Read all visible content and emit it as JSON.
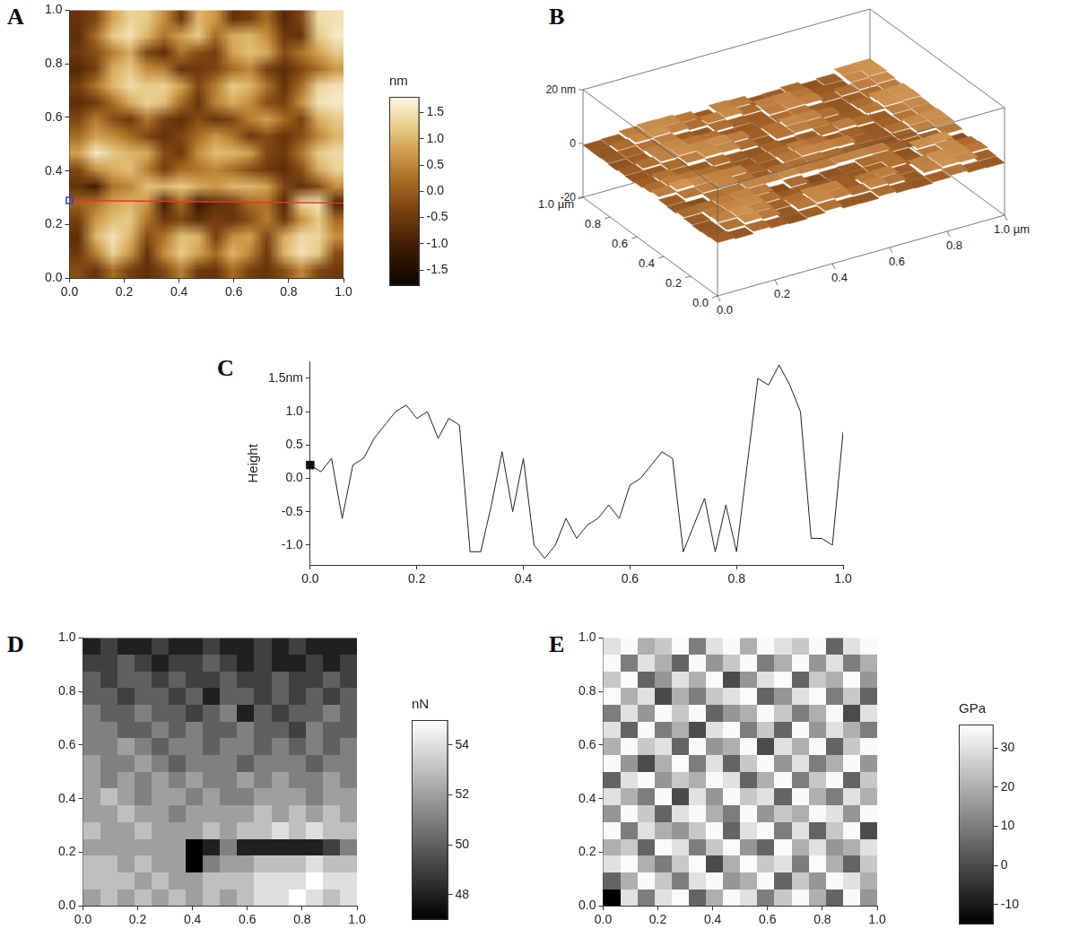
{
  "chart_data": [
    {
      "panel_label": "A",
      "type": "heatmap",
      "color": "gold",
      "xlim": [
        0,
        1
      ],
      "ylim": [
        0,
        1
      ],
      "xticks": [
        {
          "value": 0,
          "label": "0.0"
        },
        0.2,
        0.4,
        0.6,
        0.8,
        {
          "value": 1,
          "label": "1.0"
        }
      ],
      "yticks": [
        {
          "value": 0,
          "label": "0.0"
        },
        0.2,
        0.4,
        0.6,
        0.8,
        {
          "value": 1,
          "label": "1.0"
        }
      ],
      "cells": [
        [
          -0.6,
          -0.3,
          0.8,
          1.3,
          1.2,
          0.6,
          -0.5,
          1.0,
          0.7,
          -0.6,
          -0.4,
          0.2,
          -0.8,
          -0.3,
          1.4,
          1.5
        ],
        [
          -0.7,
          0.2,
          1.2,
          1.5,
          1.0,
          0.3,
          0.8,
          1.2,
          0.2,
          0.9,
          1.0,
          0.6,
          -0.5,
          -0.6,
          1.2,
          1.6
        ],
        [
          -0.5,
          -0.2,
          0.4,
          0.9,
          -0.3,
          -0.7,
          0.3,
          -0.2,
          -0.4,
          0.8,
          1.1,
          0.9,
          -0.2,
          0.3,
          0.8,
          1.2
        ],
        [
          -0.8,
          -0.4,
          0.9,
          1.2,
          0.6,
          0.4,
          -0.6,
          -0.5,
          -0.3,
          0.2,
          0.5,
          -0.4,
          -0.7,
          -0.3,
          0.2,
          0.7
        ],
        [
          -0.4,
          0.3,
          1.0,
          1.4,
          1.2,
          1.3,
          0.8,
          -0.3,
          0.4,
          1.2,
          1.0,
          0.3,
          -0.6,
          0.2,
          1.3,
          1.5
        ],
        [
          -0.7,
          -0.5,
          0.2,
          0.9,
          1.3,
          1.1,
          0.2,
          -0.6,
          0.5,
          0.9,
          0.6,
          -0.2,
          -0.4,
          0.6,
          1.5,
          1.6
        ],
        [
          -0.3,
          0.4,
          -0.2,
          -0.5,
          0.3,
          -0.4,
          -0.7,
          -0.2,
          -0.6,
          -0.3,
          0.4,
          0.8,
          0.2,
          -0.4,
          0.9,
          1.2
        ],
        [
          0.2,
          0.8,
          0.6,
          0.2,
          -0.3,
          -0.6,
          -0.3,
          0.2,
          0.7,
          0.3,
          -0.5,
          -0.2,
          -0.6,
          -0.2,
          0.5,
          1.0
        ],
        [
          0.8,
          1.6,
          1.2,
          1.0,
          0.9,
          -0.2,
          -0.5,
          0.6,
          1.1,
          1.0,
          0.8,
          -0.3,
          -0.5,
          0.3,
          1.2,
          1.4
        ],
        [
          -0.3,
          0.6,
          0.9,
          1.1,
          0.4,
          -0.4,
          0.2,
          0.3,
          0.5,
          0.2,
          -0.2,
          -0.5,
          -0.7,
          -0.2,
          0.9,
          1.3
        ],
        [
          -0.6,
          -1.0,
          0.3,
          0.5,
          1.1,
          1.0,
          1.2,
          0.9,
          0.7,
          1.0,
          1.0,
          0.8,
          -0.3,
          -0.6,
          -0.2,
          0.6
        ],
        [
          0.1,
          0.3,
          0.8,
          1.0,
          0.7,
          -1.0,
          0.2,
          -1.1,
          -0.7,
          -0.5,
          0.2,
          0.3,
          -0.8,
          1.3,
          1.5,
          -0.9
        ],
        [
          -0.4,
          0.7,
          1.1,
          1.2,
          0.3,
          -0.5,
          -0.3,
          -0.7,
          -0.4,
          -0.6,
          -0.2,
          0.4,
          -0.5,
          0.6,
          1.2,
          0.2
        ],
        [
          -0.7,
          1.0,
          1.5,
          1.0,
          -0.2,
          0.3,
          1.1,
          1.0,
          -0.4,
          0.6,
          0.8,
          -0.3,
          0.9,
          1.4,
          1.3,
          0.6
        ],
        [
          -0.5,
          0.4,
          1.3,
          0.7,
          -0.6,
          0.6,
          1.2,
          0.8,
          0.2,
          1.0,
          0.5,
          -0.5,
          1.0,
          1.5,
          1.2,
          -0.2
        ],
        [
          -0.2,
          -0.6,
          0.2,
          -0.4,
          -0.7,
          -0.3,
          0.4,
          -0.5,
          -0.6,
          0.2,
          -0.4,
          -0.6,
          -0.2,
          0.5,
          -0.3,
          -0.5
        ]
      ],
      "colorbar": {
        "title": "nm",
        "range": [
          -1.8,
          1.8
        ],
        "ticks": [
          1.5,
          {
            "value": 1,
            "label": "1.0"
          },
          0.5,
          {
            "value": 0,
            "label": "0.0"
          },
          -0.5,
          {
            "value": -1,
            "label": "-1.0"
          },
          -1.5
        ]
      },
      "profile": {
        "x": [
          0,
          1
        ],
        "y": [
          0.29,
          0.28
        ],
        "color": "#e8372b"
      }
    },
    {
      "panel_label": "B",
      "type": "surface3d",
      "xlim": [
        0,
        1
      ],
      "ylim": [
        0,
        1
      ],
      "zlim": [
        -20,
        20
      ],
      "xticks": [
        {
          "value": 0,
          "label": "0.0"
        },
        0.2,
        0.4,
        0.6,
        0.8,
        {
          "value": 1,
          "label": "1.0 µm"
        }
      ],
      "yticks": [
        {
          "value": 0,
          "label": "0.0"
        },
        0.2,
        0.4,
        0.6,
        0.8,
        {
          "value": 1,
          "label": "1.0 µm"
        }
      ],
      "zticks": [
        -20,
        0,
        {
          "value": 20,
          "label": "20 nm"
        }
      ]
    },
    {
      "panel_label": "C",
      "type": "line",
      "y_label": "Height",
      "color": "#222222",
      "x": [
        0,
        0.02,
        0.04,
        0.06,
        0.08,
        0.1,
        0.12,
        0.14,
        0.16,
        0.18,
        0.2,
        0.22,
        0.24,
        0.26,
        0.28,
        0.3,
        0.32,
        0.34,
        0.36,
        0.38,
        0.4,
        0.42,
        0.44,
        0.46,
        0.48,
        0.5,
        0.52,
        0.54,
        0.56,
        0.58,
        0.6,
        0.62,
        0.64,
        0.66,
        0.68,
        0.7,
        0.72,
        0.74,
        0.76,
        0.78,
        0.8,
        0.82,
        0.84,
        0.86,
        0.88,
        0.9,
        0.92,
        0.94,
        0.96,
        0.98,
        1
      ],
      "values": [
        0.2,
        0.1,
        0.3,
        -0.6,
        0.2,
        0.3,
        0.6,
        0.8,
        1.0,
        1.1,
        0.9,
        1.0,
        0.6,
        0.9,
        0.8,
        -1.1,
        -1.1,
        -0.4,
        0.4,
        -0.5,
        0.3,
        -1.0,
        -1.2,
        -1.0,
        -0.6,
        -0.9,
        -0.7,
        -0.6,
        -0.4,
        -0.6,
        -0.1,
        0.0,
        0.2,
        0.4,
        0.3,
        -1.1,
        -0.7,
        -0.3,
        -1.1,
        -0.4,
        -1.1,
        0.2,
        1.5,
        1.4,
        1.7,
        1.4,
        1.0,
        -0.9,
        -0.9,
        -1.0,
        0.7
      ],
      "xlim": [
        0,
        1
      ],
      "ylim": [
        -1.3,
        1.75
      ],
      "xticks": [
        {
          "value": 0,
          "label": "0.0"
        },
        0.2,
        0.4,
        0.6,
        0.8,
        {
          "value": 1,
          "label": "1.0"
        }
      ],
      "yticks": [
        {
          "value": 1.5,
          "label": "1.5nm"
        },
        {
          "value": 1,
          "label": "1.0"
        },
        0.5,
        {
          "value": 0,
          "label": "0.0"
        },
        -0.5,
        {
          "value": -1,
          "label": "-1.0"
        }
      ],
      "cursor": {
        "x": 0,
        "y": 0.2
      }
    },
    {
      "panel_label": "D",
      "type": "heatmap",
      "color": "gray",
      "xlim": [
        0,
        1
      ],
      "ylim": [
        0,
        1
      ],
      "xticks": [
        {
          "value": 0,
          "label": "0.0"
        },
        0.2,
        0.4,
        0.6,
        0.8,
        {
          "value": 1,
          "label": "1.0"
        }
      ],
      "yticks": [
        {
          "value": 0,
          "label": "0.0"
        },
        0.2,
        0.4,
        0.6,
        0.8,
        {
          "value": 1,
          "label": "1.0"
        }
      ],
      "cells": [
        [
          48,
          49,
          48,
          48,
          49,
          48,
          48,
          49,
          48,
          48,
          49,
          48,
          49,
          48,
          48,
          48
        ],
        [
          49,
          49,
          50,
          49,
          48,
          49,
          49,
          50,
          49,
          48,
          49,
          48,
          48,
          49,
          48,
          49
        ],
        [
          50,
          49,
          50,
          50,
          49,
          50,
          49,
          49,
          50,
          49,
          49,
          50,
          49,
          49,
          50,
          49
        ],
        [
          50,
          50,
          49,
          50,
          50,
          49,
          50,
          48,
          50,
          50,
          49,
          50,
          49,
          50,
          49,
          50
        ],
        [
          51,
          50,
          50,
          51,
          50,
          50,
          49,
          50,
          51,
          48,
          50,
          49,
          50,
          50,
          51,
          50
        ],
        [
          51,
          51,
          50,
          50,
          51,
          50,
          51,
          50,
          50,
          51,
          50,
          50,
          49,
          51,
          50,
          50
        ],
        [
          51,
          51,
          52,
          51,
          50,
          51,
          51,
          50,
          51,
          51,
          50,
          51,
          50,
          51,
          50,
          51
        ],
        [
          52,
          51,
          51,
          52,
          51,
          50,
          51,
          51,
          51,
          50,
          51,
          51,
          51,
          50,
          51,
          51
        ],
        [
          52,
          51,
          52,
          51,
          52,
          51,
          52,
          51,
          51,
          52,
          51,
          52,
          51,
          51,
          52,
          51
        ],
        [
          52,
          53,
          52,
          51,
          52,
          52,
          51,
          52,
          51,
          51,
          52,
          52,
          52,
          51,
          52,
          52
        ],
        [
          52,
          52,
          53,
          52,
          52,
          51,
          52,
          52,
          52,
          52,
          53,
          52,
          53,
          52,
          53,
          52
        ],
        [
          53,
          52,
          52,
          53,
          52,
          52,
          52,
          53,
          52,
          53,
          53,
          54,
          53,
          54,
          53,
          53
        ],
        [
          52,
          52,
          52,
          52,
          52,
          52,
          47,
          48,
          51,
          48,
          48,
          48,
          48,
          48,
          49,
          51
        ],
        [
          53,
          53,
          52,
          53,
          52,
          52,
          47,
          51,
          52,
          52,
          53,
          53,
          53,
          54,
          53,
          53
        ],
        [
          53,
          53,
          53,
          52,
          53,
          52,
          52,
          53,
          53,
          53,
          54,
          54,
          54,
          55,
          54,
          54
        ],
        [
          52,
          53,
          52,
          53,
          52,
          53,
          52,
          53,
          52,
          53,
          54,
          54,
          55,
          54,
          53,
          54
        ]
      ],
      "colorbar": {
        "title": "nN",
        "range": [
          47,
          55
        ],
        "ticks": [
          48,
          50,
          52,
          54
        ]
      }
    },
    {
      "panel_label": "E",
      "type": "heatmap",
      "color": "gray",
      "xlim": [
        0,
        1
      ],
      "ylim": [
        0,
        1
      ],
      "xticks": [
        {
          "value": 0,
          "label": "0.0"
        },
        0.2,
        0.4,
        0.6,
        0.8,
        {
          "value": 1,
          "label": "1.0"
        }
      ],
      "yticks": [
        {
          "value": 0,
          "label": "0.0"
        },
        0.2,
        0.4,
        0.6,
        0.8,
        {
          "value": 1,
          "label": "1.0"
        }
      ],
      "cells": [
        [
          30,
          35,
          20,
          25,
          35,
          10,
          30,
          35,
          20,
          35,
          30,
          25,
          35,
          5,
          30,
          35
        ],
        [
          35,
          10,
          30,
          20,
          5,
          35,
          15,
          25,
          35,
          10,
          20,
          35,
          15,
          30,
          10,
          20
        ],
        [
          25,
          35,
          5,
          15,
          30,
          20,
          35,
          0,
          15,
          30,
          35,
          5,
          25,
          20,
          35,
          15
        ],
        [
          35,
          20,
          30,
          0,
          20,
          10,
          25,
          30,
          35,
          5,
          15,
          30,
          35,
          10,
          25,
          5
        ],
        [
          10,
          30,
          15,
          35,
          25,
          35,
          5,
          15,
          20,
          35,
          25,
          10,
          20,
          35,
          0,
          30
        ],
        [
          30,
          5,
          35,
          10,
          20,
          0,
          30,
          35,
          10,
          25,
          5,
          35,
          15,
          30,
          20,
          10
        ],
        [
          20,
          35,
          25,
          30,
          5,
          35,
          15,
          20,
          35,
          0,
          30,
          20,
          35,
          5,
          25,
          35
        ],
        [
          35,
          15,
          0,
          20,
          35,
          10,
          30,
          5,
          25,
          35,
          15,
          30,
          10,
          20,
          35,
          15
        ],
        [
          5,
          30,
          35,
          15,
          25,
          20,
          35,
          30,
          5,
          20,
          35,
          10,
          25,
          35,
          5,
          25
        ],
        [
          30,
          20,
          10,
          35,
          0,
          30,
          15,
          35,
          25,
          30,
          5,
          35,
          20,
          10,
          30,
          20
        ],
        [
          15,
          35,
          25,
          5,
          30,
          35,
          20,
          10,
          35,
          15,
          25,
          20,
          35,
          30,
          15,
          35
        ],
        [
          35,
          10,
          30,
          20,
          15,
          25,
          35,
          5,
          30,
          35,
          10,
          30,
          5,
          25,
          35,
          0
        ],
        [
          20,
          25,
          5,
          35,
          30,
          10,
          25,
          35,
          15,
          5,
          35,
          20,
          30,
          15,
          20,
          30
        ],
        [
          30,
          35,
          20,
          10,
          25,
          35,
          0,
          20,
          35,
          25,
          30,
          10,
          35,
          20,
          5,
          25
        ],
        [
          5,
          20,
          35,
          25,
          10,
          30,
          35,
          15,
          20,
          35,
          5,
          25,
          15,
          35,
          30,
          20
        ],
        [
          -15,
          30,
          10,
          30,
          35,
          5,
          20,
          35,
          30,
          10,
          25,
          35,
          20,
          5,
          35,
          15
        ]
      ],
      "colorbar": {
        "title": "GPa",
        "range": [
          -15,
          36
        ],
        "ticks": [
          -10,
          0,
          10,
          20,
          30
        ]
      }
    }
  ]
}
